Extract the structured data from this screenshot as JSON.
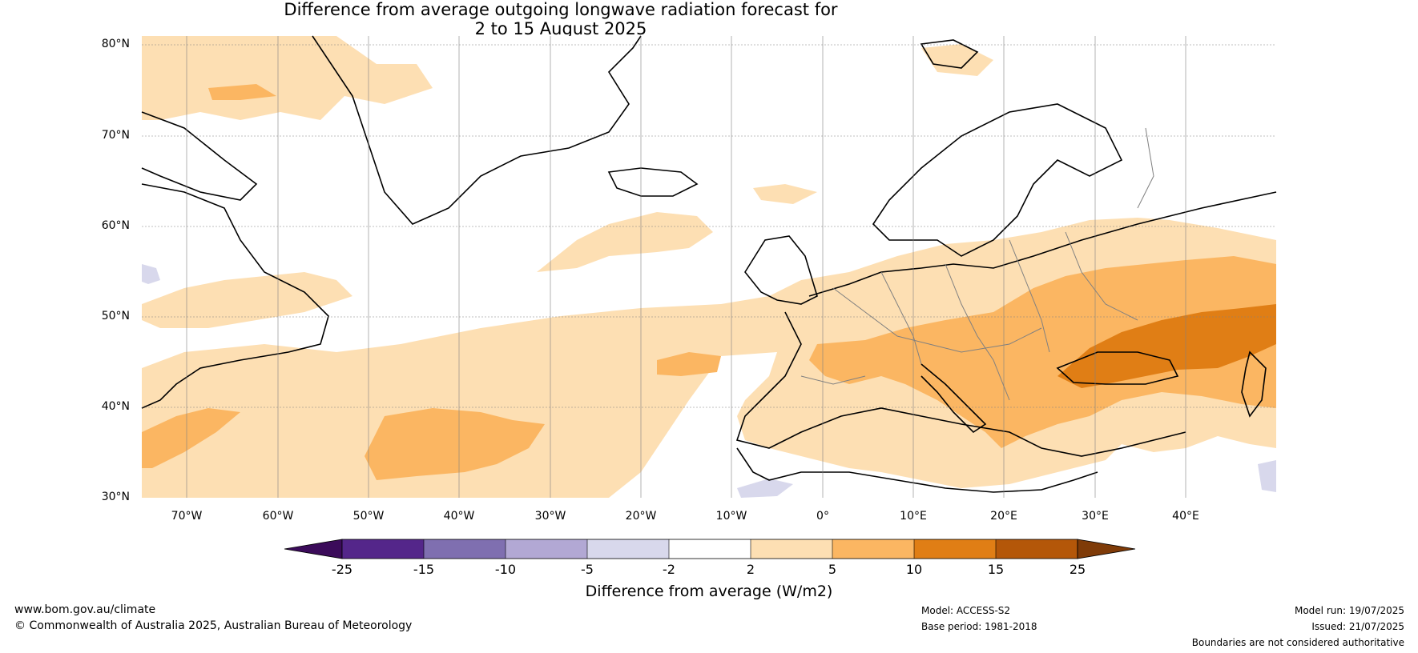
{
  "title": {
    "line1": "Difference from average outgoing longwave radiation forecast for",
    "line2": "2 to 15 August 2025"
  },
  "map": {
    "latitudes": [
      "80°N",
      "70°N",
      "60°N",
      "50°N",
      "40°N",
      "30°N"
    ],
    "longitudes": [
      "70°W",
      "60°W",
      "50°W",
      "40°W",
      "30°W",
      "20°W",
      "10°W",
      "0°",
      "10°E",
      "20°E",
      "30°E",
      "40°E"
    ],
    "colors": {
      "ocean_land": "#ffffff",
      "anom_2_5": "#fddfb3",
      "anom_5_10": "#fbb662",
      "anom_10_15": "#e07e15",
      "anom_neg": "#d8d8ec",
      "coast": "#000000",
      "borders": "#808080"
    }
  },
  "colorbar": {
    "label": "Difference from average (W/m2)",
    "ticks": [
      "-25",
      "-15",
      "-10",
      "-5",
      "-2",
      "2",
      "5",
      "10",
      "15",
      "25"
    ],
    "colors": [
      "#3b0b5a",
      "#54268a",
      "#7f6fb0",
      "#b2a8d4",
      "#d8d8ec",
      "#ffffff",
      "#fddfb3",
      "#fbb662",
      "#e07e15",
      "#b45709",
      "#7f3b08"
    ]
  },
  "footer": {
    "website": "www.bom.gov.au/climate",
    "copyright": "© Commonwealth of Australia 2025, Australian Bureau of Meteorology",
    "model": "Model: ACCESS-S2",
    "base_period": "Base period: 1981-2018",
    "model_run": "Model run: 19/07/2025",
    "issued": "Issued: 21/07/2025",
    "disclaimer": "Boundaries are not considered authoritative"
  }
}
